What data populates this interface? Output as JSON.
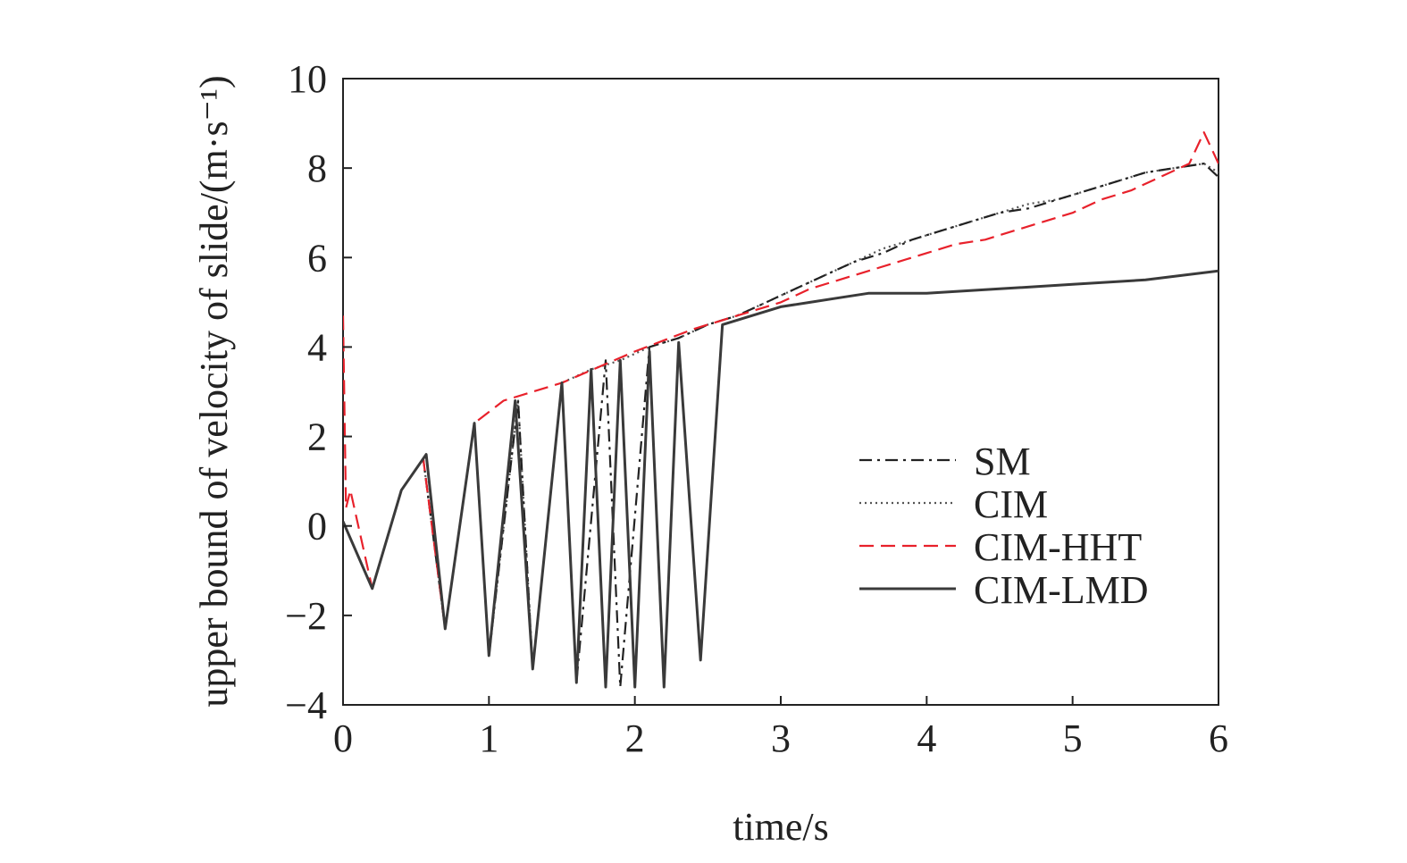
{
  "chart_data": {
    "type": "line",
    "title": "",
    "xlabel": "time/s",
    "ylabel": "upper bound of velocity of slide/(m·s⁻¹)",
    "xlim": [
      0,
      6
    ],
    "ylim": [
      -4,
      10
    ],
    "xticks": [
      "0",
      "1",
      "2",
      "3",
      "4",
      "5",
      "6"
    ],
    "yticks": [
      "−4",
      "−2",
      "0",
      "2",
      "4",
      "6",
      "8",
      "10"
    ],
    "grid": false,
    "legend_position": "right",
    "colors": {
      "SM": "#222222",
      "CIM": "#555555",
      "CIM-HHT": "#e8212b",
      "CIM-LMD": "#3a3a3a",
      "band": "#3d47b8"
    },
    "legend": [
      "SM",
      "CIM",
      "CIM-HHT",
      "CIM-LMD"
    ],
    "series": [
      {
        "name": "SM",
        "style": "dash-dot",
        "x": [
          0,
          0.2,
          0.4,
          0.55,
          0.7,
          0.9,
          1.0,
          1.2,
          1.3,
          1.5,
          1.6,
          1.8,
          1.9,
          2.1,
          2.3,
          2.5,
          2.7,
          2.9,
          3.1,
          3.3,
          3.5,
          3.7,
          3.9,
          4.1,
          4.3,
          4.5,
          4.7,
          4.9,
          5.1,
          5.3,
          5.5,
          5.7,
          5.9,
          6.0
        ],
        "y": [
          0.1,
          -1.4,
          0.8,
          1.5,
          -2.3,
          2.3,
          -2.9,
          2.8,
          -3.2,
          3.2,
          -3.5,
          3.7,
          -3.6,
          4.0,
          4.2,
          4.5,
          4.7,
          5.0,
          5.3,
          5.6,
          5.9,
          6.1,
          6.4,
          6.6,
          6.8,
          7.0,
          7.1,
          7.3,
          7.5,
          7.7,
          7.9,
          8.0,
          8.1,
          7.8
        ]
      },
      {
        "name": "CIM",
        "style": "dotted",
        "x": [
          0,
          0.2,
          0.4,
          0.55,
          0.7,
          0.9,
          1.0,
          1.2,
          1.3,
          1.5,
          1.7,
          1.9,
          2.1,
          2.3,
          2.5,
          2.7,
          2.9,
          3.1,
          3.3,
          3.5,
          3.7,
          3.9,
          4.1,
          4.3,
          4.5,
          4.7,
          4.9,
          5.1,
          5.3,
          5.5,
          5.7,
          5.9,
          6.0
        ],
        "y": [
          0.1,
          -1.4,
          0.8,
          1.5,
          -2.3,
          2.3,
          -2.9,
          2.8,
          -3.2,
          3.2,
          3.5,
          3.7,
          4.0,
          4.2,
          4.5,
          4.7,
          5.0,
          5.3,
          5.6,
          5.9,
          6.2,
          6.4,
          6.6,
          6.8,
          7.0,
          7.2,
          7.3,
          7.5,
          7.7,
          7.9,
          8.0,
          8.1,
          7.9
        ]
      },
      {
        "name": "CIM-HHT",
        "style": "dashed",
        "x": [
          0,
          0.02,
          0.05,
          0.2,
          0.4,
          0.55,
          0.7,
          0.9,
          1.1,
          1.5,
          2.0,
          2.4,
          2.6,
          2.8,
          3.0,
          3.2,
          3.4,
          3.6,
          3.8,
          4.0,
          4.2,
          4.4,
          4.6,
          4.8,
          5.0,
          5.2,
          5.4,
          5.6,
          5.8,
          5.9,
          6.0
        ],
        "y": [
          4.7,
          0.4,
          0.8,
          -1.4,
          0.8,
          1.5,
          -2.3,
          2.3,
          2.8,
          3.2,
          3.9,
          4.4,
          4.6,
          4.8,
          5.0,
          5.3,
          5.5,
          5.7,
          5.9,
          6.1,
          6.3,
          6.4,
          6.6,
          6.8,
          7.0,
          7.3,
          7.5,
          7.8,
          8.1,
          8.8,
          8.1
        ]
      },
      {
        "name": "CIM-LMD",
        "style": "solid",
        "x": [
          0,
          0.2,
          0.4,
          0.57,
          0.7,
          0.9,
          1.0,
          1.18,
          1.3,
          1.5,
          1.6,
          1.7,
          1.8,
          1.9,
          2.0,
          2.1,
          2.2,
          2.3,
          2.45,
          2.6,
          2.8,
          3.0,
          3.2,
          3.4,
          3.6,
          3.8,
          4.0,
          4.5,
          5.0,
          5.5,
          6.0
        ],
        "y": [
          0.1,
          -1.4,
          0.8,
          1.6,
          -2.3,
          2.3,
          -2.9,
          2.8,
          -3.2,
          3.2,
          -3.5,
          3.5,
          -3.6,
          3.7,
          -3.6,
          3.9,
          -3.6,
          4.1,
          -3.0,
          4.5,
          4.7,
          4.9,
          5.0,
          5.1,
          5.2,
          5.2,
          5.2,
          5.3,
          5.4,
          5.5,
          5.7
        ]
      }
    ]
  }
}
